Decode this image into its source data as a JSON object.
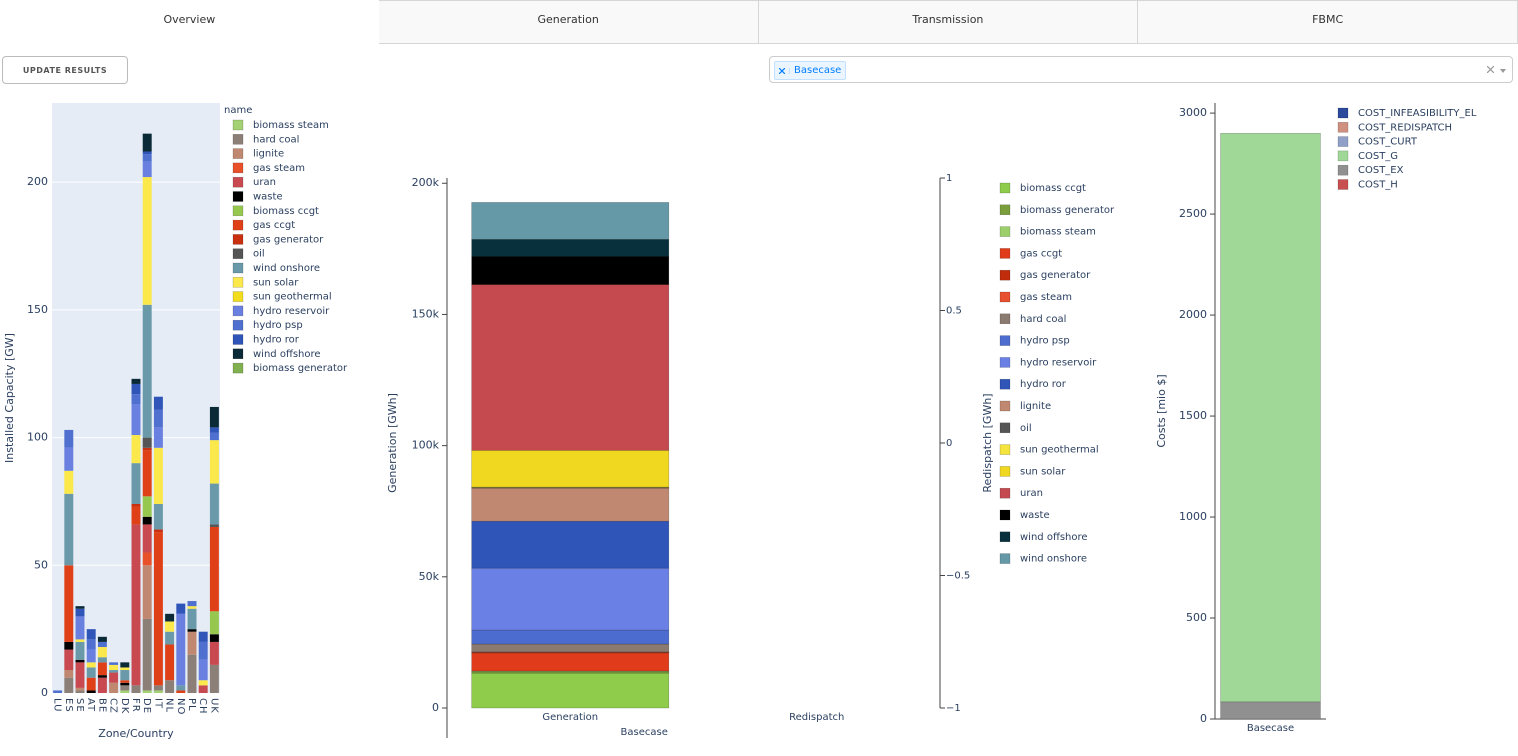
{
  "tabs": [
    "Overview",
    "Generation",
    "Transmission",
    "FBMC"
  ],
  "button": "UPDATE RESULTS",
  "dropdown": {
    "selected": [
      "Basecase"
    ]
  },
  "chart_data": [
    {
      "type": "bar",
      "barmode": "stack",
      "grid": true,
      "x_label": "Zone/Country",
      "y_label": "Installed Capacity [GW]",
      "legend_title": "name",
      "categories": [
        "LU",
        "ES",
        "SE",
        "AT",
        "BE",
        "CZ",
        "DK",
        "FR",
        "DE",
        "IT",
        "NL",
        "NO",
        "PL",
        "CH",
        "UK"
      ],
      "ylim": [
        0,
        231
      ],
      "yticks": [
        0,
        50,
        100,
        150,
        200
      ],
      "series": [
        {
          "name": "biomass steam",
          "color": "#a3d173",
          "values": [
            0,
            0,
            0,
            0,
            0,
            0,
            1,
            0,
            1,
            1,
            0,
            0,
            0,
            0,
            0
          ]
        },
        {
          "name": "hard coal",
          "color": "#8c7f78",
          "values": [
            0,
            6,
            1,
            0,
            0,
            0,
            2,
            3,
            28,
            2,
            5,
            0,
            15,
            0,
            11
          ]
        },
        {
          "name": "lignite",
          "color": "#c08870",
          "values": [
            0,
            3,
            1,
            0,
            0,
            4,
            0,
            0,
            21,
            0,
            0,
            0,
            9,
            0,
            0
          ]
        },
        {
          "name": "gas steam",
          "color": "#e8502a",
          "values": [
            0,
            0,
            0,
            0,
            0,
            0,
            0,
            0,
            5,
            0,
            0,
            0,
            0,
            0,
            0
          ]
        },
        {
          "name": "uran",
          "color": "#c84a50",
          "values": [
            0,
            8,
            10,
            0,
            6,
            4,
            0,
            63,
            11,
            0,
            0,
            0,
            0,
            3,
            9
          ]
        },
        {
          "name": "waste",
          "color": "#000000",
          "values": [
            0,
            3,
            1,
            1,
            1,
            0,
            1,
            0,
            3,
            0,
            0,
            0,
            1,
            0,
            3
          ]
        },
        {
          "name": "biomass ccgt",
          "color": "#96c850",
          "values": [
            0,
            0,
            0,
            0,
            0,
            0,
            0,
            0,
            8,
            0,
            0,
            0,
            0,
            0,
            9
          ]
        },
        {
          "name": "gas ccgt",
          "color": "#e04018",
          "values": [
            0,
            30,
            0,
            5,
            5,
            0,
            1,
            7,
            18,
            60,
            14,
            1,
            0,
            0,
            33
          ]
        },
        {
          "name": "gas generator",
          "color": "#c83010",
          "values": [
            0,
            0,
            0,
            0,
            0,
            0,
            0,
            1,
            1,
            1,
            0,
            0,
            0,
            0,
            0
          ]
        },
        {
          "name": "oil",
          "color": "#555555",
          "values": [
            0,
            0,
            0,
            0,
            0,
            0,
            0,
            0,
            4,
            0,
            0,
            0,
            0,
            0,
            1
          ]
        },
        {
          "name": "wind onshore",
          "color": "#6a9aaa",
          "values": [
            0,
            28,
            7,
            4,
            2,
            1,
            4,
            16,
            52,
            10,
            5,
            2,
            8,
            0,
            16
          ]
        },
        {
          "name": "sun solar",
          "color": "#fbe84a",
          "values": [
            0,
            9,
            1,
            2,
            4,
            2,
            1,
            11,
            50,
            22,
            4,
            0,
            1,
            2,
            17
          ]
        },
        {
          "name": "sun geothermal",
          "color": "#f2dc1e",
          "values": [
            0,
            0,
            0,
            0,
            0,
            0,
            0,
            0,
            0,
            0,
            0,
            0,
            0,
            0,
            0
          ]
        },
        {
          "name": "hydro reservoir",
          "color": "#6a80e0",
          "values": [
            0,
            9,
            9,
            5,
            0,
            0,
            0,
            12,
            6,
            8,
            0,
            28,
            0,
            8,
            0
          ]
        },
        {
          "name": "hydro psp",
          "color": "#5070d0",
          "values": [
            1,
            7,
            0,
            4,
            2,
            1,
            0,
            4,
            3,
            7,
            0,
            0,
            2,
            7,
            3
          ]
        },
        {
          "name": "hydro ror",
          "color": "#2f55b8",
          "values": [
            0,
            0,
            3,
            4,
            0,
            0,
            0,
            4,
            1,
            5,
            0,
            4,
            0,
            4,
            2
          ]
        },
        {
          "name": "wind offshore",
          "color": "#0a2a38",
          "values": [
            0,
            0,
            1,
            0,
            2,
            0,
            2,
            2,
            7,
            0,
            3,
            0,
            0,
            0,
            8
          ]
        },
        {
          "name": "biomass generator",
          "color": "#80b050",
          "values": [
            0,
            0,
            0,
            0,
            0,
            0,
            0,
            0,
            0,
            0,
            0,
            0,
            0,
            0,
            0
          ]
        }
      ]
    },
    {
      "type": "bar",
      "barmode": "stack",
      "grid": false,
      "y_label": "Generation [GWh]",
      "y2_label": "Redispatch [GWh]",
      "categories": [
        "Generation",
        "Redispatch"
      ],
      "x_group": "Basecase",
      "ylim": [
        0,
        202000
      ],
      "yticks": [
        0,
        {
          "value": 50000,
          "label": "50k"
        },
        {
          "value": 100000,
          "label": "100k"
        },
        {
          "value": 150000,
          "label": "150k"
        },
        {
          "value": 200000,
          "label": "200k"
        }
      ],
      "y2lim": [
        -1,
        1
      ],
      "y2ticks": [
        {
          "value": -1,
          "label": "−1"
        },
        {
          "value": -0.5,
          "label": "−0.5"
        },
        0,
        0.5,
        1
      ],
      "series": [
        {
          "name": "biomass ccgt",
          "color": "#8fcc4c",
          "values": [
            13300,
            null
          ]
        },
        {
          "name": "biomass generator",
          "color": "#7a9e3c",
          "values": [
            500,
            null
          ]
        },
        {
          "name": "biomass steam",
          "color": "#9ccf6a",
          "values": [
            300,
            null
          ]
        },
        {
          "name": "gas ccgt",
          "color": "#e03c1c",
          "values": [
            6900,
            null
          ]
        },
        {
          "name": "gas generator",
          "color": "#c02c0c",
          "values": [
            200,
            null
          ]
        },
        {
          "name": "gas steam",
          "color": "#e85030",
          "values": [
            200,
            null
          ]
        },
        {
          "name": "hard coal",
          "color": "#8a7a70",
          "values": [
            3000,
            null
          ]
        },
        {
          "name": "hydro psp",
          "color": "#4c6cd0",
          "values": [
            5300,
            null
          ]
        },
        {
          "name": "hydro reservoir",
          "color": "#6a80e4",
          "values": [
            23600,
            null
          ]
        },
        {
          "name": "hydro ror",
          "color": "#2f55b8",
          "values": [
            17900,
            null
          ]
        },
        {
          "name": "lignite",
          "color": "#c08870",
          "values": [
            12600,
            null
          ]
        },
        {
          "name": "oil",
          "color": "#555555",
          "values": [
            200,
            null
          ]
        },
        {
          "name": "sun geothermal",
          "color": "#f4e43c",
          "values": [
            200,
            null
          ]
        },
        {
          "name": "sun solar",
          "color": "#f0d820",
          "values": [
            14000,
            null
          ]
        },
        {
          "name": "uran",
          "color": "#c44a50",
          "values": [
            63200,
            null
          ]
        },
        {
          "name": "waste",
          "color": "#000000",
          "values": [
            10700,
            null
          ]
        },
        {
          "name": "wind offshore",
          "color": "#07303c",
          "values": [
            6500,
            null
          ]
        },
        {
          "name": "wind onshore",
          "color": "#6699a8",
          "values": [
            14100,
            null
          ]
        }
      ]
    },
    {
      "type": "bar",
      "barmode": "stack",
      "grid": false,
      "stack_order": "reversed",
      "y_label": "Costs [mio $]",
      "categories": [
        "Basecase"
      ],
      "ylim": [
        0,
        3050
      ],
      "yticks": [
        0,
        500,
        1000,
        1500,
        2000,
        2500,
        3000
      ],
      "series": [
        {
          "name": "COST_INFEASIBILITY_EL",
          "color": "#2c4a9c",
          "values": [
            0
          ]
        },
        {
          "name": "COST_REDISPATCH",
          "color": "#d09080",
          "values": [
            0
          ]
        },
        {
          "name": "COST_CURT",
          "color": "#90a0c8",
          "values": [
            0
          ]
        },
        {
          "name": "COST_G",
          "color": "#a0d898",
          "values": [
            2815
          ]
        },
        {
          "name": "COST_EX",
          "color": "#909090",
          "values": [
            85
          ]
        },
        {
          "name": "COST_H",
          "color": "#c85050",
          "values": [
            0
          ]
        }
      ]
    }
  ]
}
